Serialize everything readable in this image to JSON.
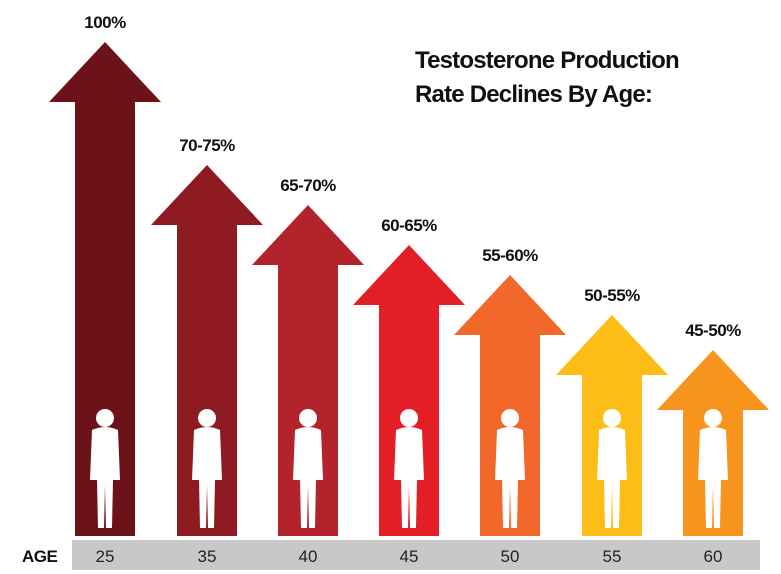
{
  "title_lines": [
    "Testosterone Production",
    "Rate Declines By Age:"
  ],
  "axis_label": "AGE",
  "items": [
    {
      "age": "25",
      "label": "100%",
      "color": "#6b1318"
    },
    {
      "age": "35",
      "label": "70-75%",
      "color": "#8e1b22"
    },
    {
      "age": "40",
      "label": "65-70%",
      "color": "#b3232b"
    },
    {
      "age": "45",
      "label": "60-65%",
      "color": "#e31e26"
    },
    {
      "age": "50",
      "label": "55-60%",
      "color": "#f2672a"
    },
    {
      "age": "55",
      "label": "50-55%",
      "color": "#fbbd16"
    },
    {
      "age": "60",
      "label": "45-50%",
      "color": "#f7941e"
    }
  ]
}
